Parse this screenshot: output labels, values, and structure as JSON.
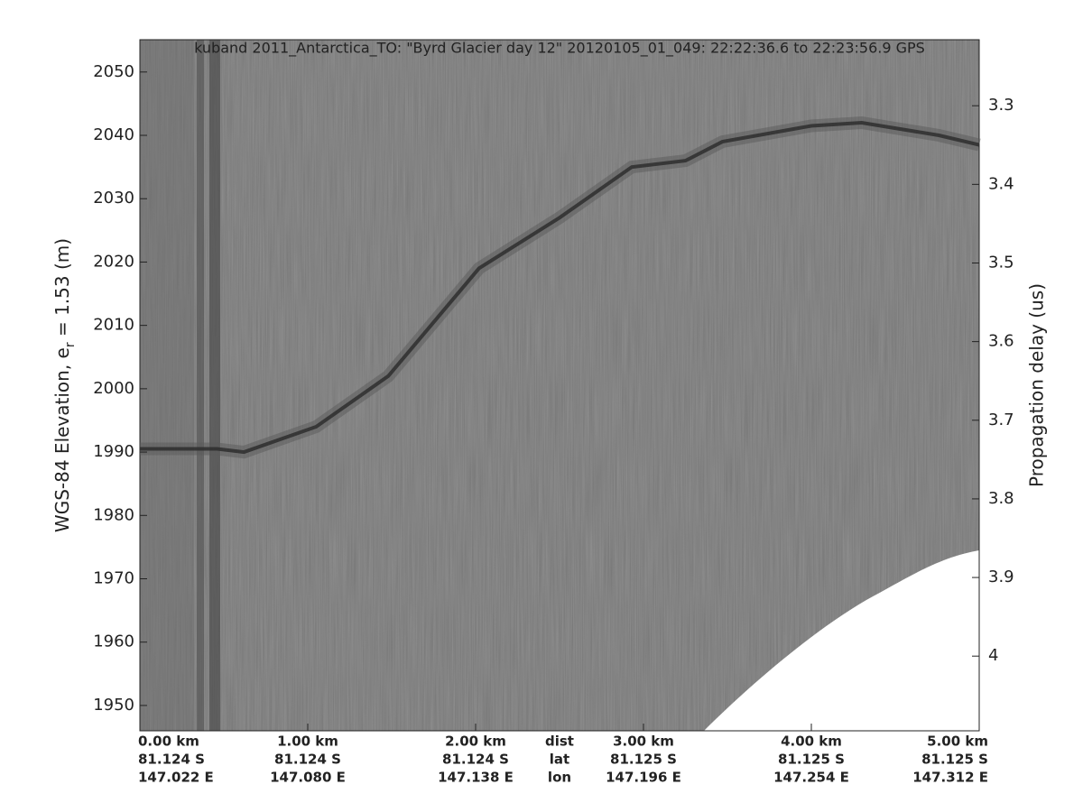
{
  "chart_data": {
    "type": "radargram",
    "title": "kuband 2011_Antarctica_TO: \"Byrd Glacier day 12\"  20120105_01_049: 22:22:36.6 to 22:23:56.9 GPS",
    "ylabel": {
      "before": "WGS-84 Elevation, e",
      "sub": "r",
      "after": " = 1.53 (m)"
    },
    "y2label": "Propagation delay (us)",
    "xlim": [
      0,
      5
    ],
    "xticks": [
      {
        "value": 0,
        "label": "0.00 km"
      },
      {
        "value": 1,
        "label": "1.00 km"
      },
      {
        "value": 2,
        "label": "2.00 km"
      },
      {
        "value": 3,
        "label": "3.00 km"
      },
      {
        "value": 4,
        "label": "4.00 km"
      },
      {
        "value": 5,
        "label": "5.00 km"
      }
    ],
    "lat_labels": [
      "81.124 S",
      "81.124 S",
      "81.124 S",
      "81.125 S",
      "81.125 S",
      "81.125 S"
    ],
    "lon_labels": [
      "147.022 E",
      "147.080 E",
      "147.138 E",
      "147.196 E",
      "147.254 E",
      "147.312 E"
    ],
    "row_labels": [
      "dist",
      "lat",
      "lon"
    ],
    "ylim": [
      1946,
      2055.1
    ],
    "yticks": [
      1950,
      1960,
      1970,
      1980,
      1990,
      2000,
      2010,
      2020,
      2030,
      2040,
      2050
    ],
    "y2lim": [
      4.095,
      3.216
    ],
    "y2ticks": [
      3.3,
      3.4,
      3.5,
      3.6,
      3.7,
      3.8,
      3.9,
      4
    ],
    "surface": {
      "x": [
        0,
        0.46,
        0.62,
        1.05,
        1.48,
        2.02,
        2.5,
        2.93,
        3.25,
        3.47,
        4.0,
        4.3,
        4.76,
        5
      ],
      "values": [
        1990.5,
        1990.5,
        1990,
        1994,
        2002,
        2019,
        2027,
        2035,
        2036,
        2039,
        2041.5,
        2042,
        2040,
        2038.5
      ]
    }
  }
}
